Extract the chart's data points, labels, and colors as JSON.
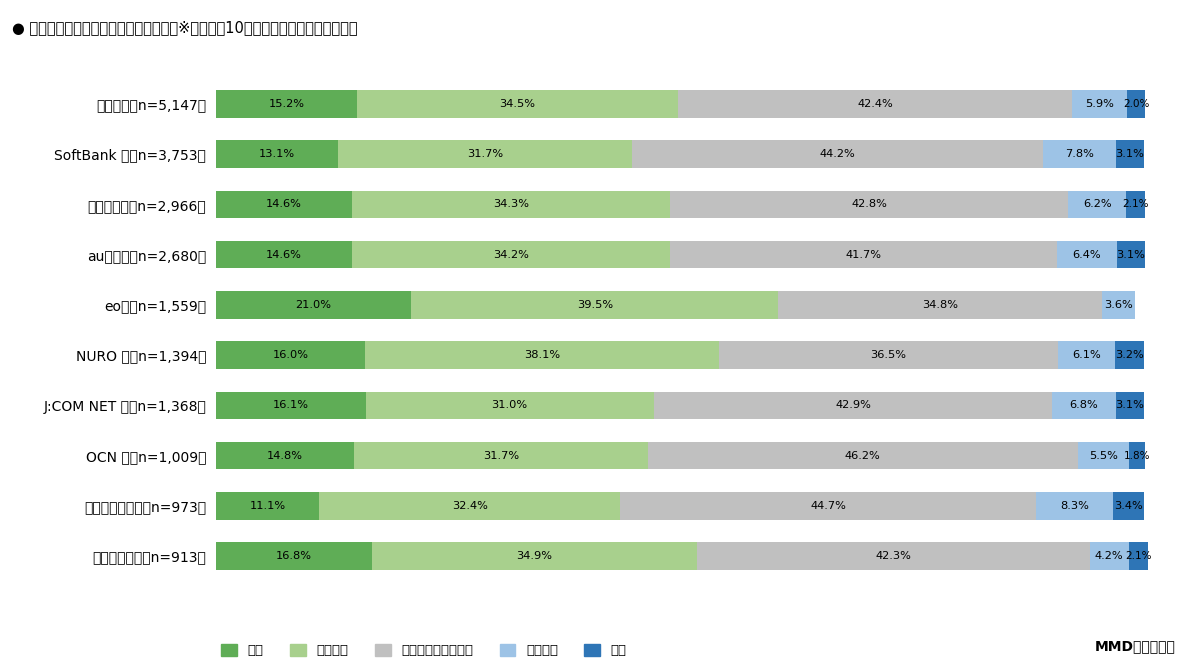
{
  "title": "● 光回線サービスの総合満足度（単数）※利用上位10サービスの光回線サービス別",
  "categories": [
    "ドコモ光（n=5,147）",
    "SoftBank 光（n=3,753）",
    "フレッツ光（n=2,966）",
    "auひかり（n=2,680）",
    "eo光（n=1,559）",
    "NURO 光（n=1,394）",
    "J:COM NET 光（n=1,368）",
    "OCN 光（n=1,009）",
    "ビッグローブ光（n=973）",
    "コミュファ光（n=913）"
  ],
  "data": {
    "満足": [
      15.2,
      13.1,
      14.6,
      14.6,
      21.0,
      16.0,
      16.1,
      14.8,
      11.1,
      16.8
    ],
    "やや満足": [
      34.5,
      31.7,
      34.3,
      34.2,
      39.5,
      38.1,
      31.0,
      31.7,
      32.4,
      34.9
    ],
    "どちらとも言えない": [
      42.4,
      44.2,
      42.8,
      41.7,
      34.8,
      36.5,
      42.9,
      46.2,
      44.7,
      42.3
    ],
    "やや不満": [
      5.9,
      7.8,
      6.2,
      6.4,
      3.6,
      6.1,
      6.8,
      5.5,
      8.3,
      4.2
    ],
    "不満": [
      2.0,
      3.1,
      2.1,
      3.1,
      0.0,
      3.2,
      3.1,
      1.8,
      3.4,
      2.1
    ]
  },
  "colors": {
    "満足": "#5fad56",
    "やや満足": "#a8d08d",
    "どちらとも言えない": "#c0c0c0",
    "やや不満": "#9dc3e6",
    "不満": "#2e75b6"
  },
  "legend_labels": [
    "満足",
    "やや満足",
    "どちらとも言えない",
    "やや不満",
    "不満"
  ],
  "footer": "MMD研究所調べ",
  "bg_color": "#ffffff"
}
